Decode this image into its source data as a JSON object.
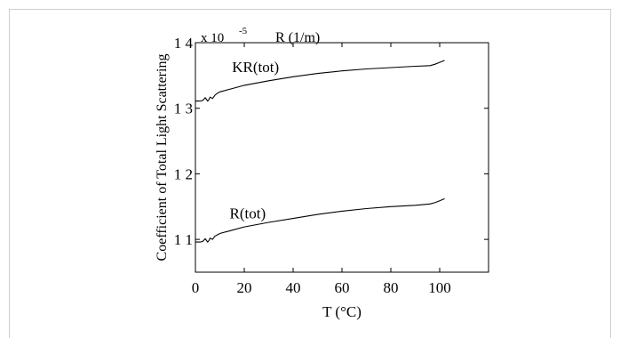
{
  "chart_data": {
    "type": "line",
    "title": "",
    "ylabel": "Coefficient of Total Light Scattering",
    "xlabel": "T (°C)",
    "y_multiplier_label": "x 10",
    "y_multiplier_exponent": "-5",
    "unit_label": "R (1/m)",
    "xlim": [
      0,
      120
    ],
    "ylim": [
      1.05,
      1.4
    ],
    "x_ticks": [
      0,
      20,
      40,
      60,
      80,
      100
    ],
    "x_tick_labels": [
      "0",
      "20",
      "40",
      "60",
      "80",
      "100"
    ],
    "y_ticks": [
      1.1,
      1.2,
      1.3,
      1.4
    ],
    "y_tick_labels": [
      "1 1",
      "1 2",
      "1 3",
      "1 4"
    ],
    "grid": false,
    "series": [
      {
        "name": "KR(tot)",
        "label_at": [
          15,
          1.355
        ],
        "x": [
          0,
          2,
          3,
          4,
          5,
          5.5,
          6,
          7,
          8,
          9,
          10,
          15,
          20,
          30,
          40,
          50,
          60,
          70,
          80,
          90,
          96,
          98,
          100,
          102
        ],
        "y": [
          1.311,
          1.311,
          1.312,
          1.316,
          1.311,
          1.313,
          1.317,
          1.315,
          1.32,
          1.323,
          1.325,
          1.33,
          1.335,
          1.342,
          1.348,
          1.353,
          1.357,
          1.36,
          1.362,
          1.364,
          1.365,
          1.367,
          1.37,
          1.373
        ]
      },
      {
        "name": "R(tot)",
        "label_at": [
          14,
          1.132
        ],
        "x": [
          0,
          2,
          3,
          4,
          5,
          5.5,
          6,
          7,
          8,
          9,
          10,
          15,
          20,
          30,
          40,
          50,
          60,
          70,
          80,
          90,
          96,
          98,
          100,
          102
        ],
        "y": [
          1.096,
          1.096,
          1.097,
          1.101,
          1.096,
          1.098,
          1.102,
          1.1,
          1.105,
          1.107,
          1.109,
          1.114,
          1.119,
          1.126,
          1.132,
          1.138,
          1.143,
          1.147,
          1.15,
          1.152,
          1.154,
          1.156,
          1.159,
          1.162
        ]
      }
    ]
  }
}
